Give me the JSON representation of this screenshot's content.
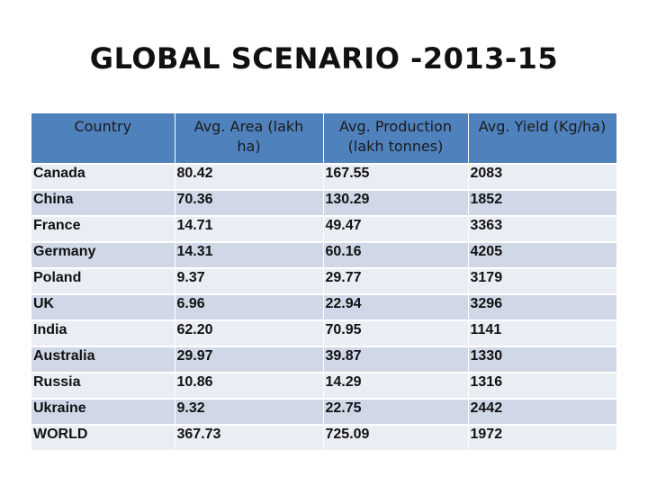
{
  "title": "GLOBAL SCENARIO -2013-15",
  "table": {
    "headers": [
      "Country",
      "Avg. Area (lakh ha)",
      "Avg. Production (lakh tonnes)",
      "Avg. Yield (Kg/ha)"
    ],
    "rows": [
      [
        "Canada",
        "80.42",
        "167.55",
        "2083"
      ],
      [
        "China",
        "70.36",
        "130.29",
        "1852"
      ],
      [
        "France",
        "14.71",
        "49.47",
        "3363"
      ],
      [
        "Germany",
        "14.31",
        "60.16",
        "4205"
      ],
      [
        "Poland",
        "9.37",
        "29.77",
        "3179"
      ],
      [
        "UK",
        "6.96",
        "22.94",
        "3296"
      ],
      [
        "India",
        "62.20",
        "70.95",
        "1141"
      ],
      [
        "Australia",
        "29.97",
        "39.87",
        "1330"
      ],
      [
        "Russia",
        "10.86",
        "14.29",
        "1316"
      ],
      [
        "Ukraine",
        "9.32",
        "22.75",
        "2442"
      ],
      [
        "WORLD",
        "367.73",
        "725.09",
        "1972"
      ]
    ]
  },
  "colors": {
    "header_bg": "#4f81bd",
    "row_odd": "#e9edf4",
    "row_even": "#d0d8e8"
  }
}
